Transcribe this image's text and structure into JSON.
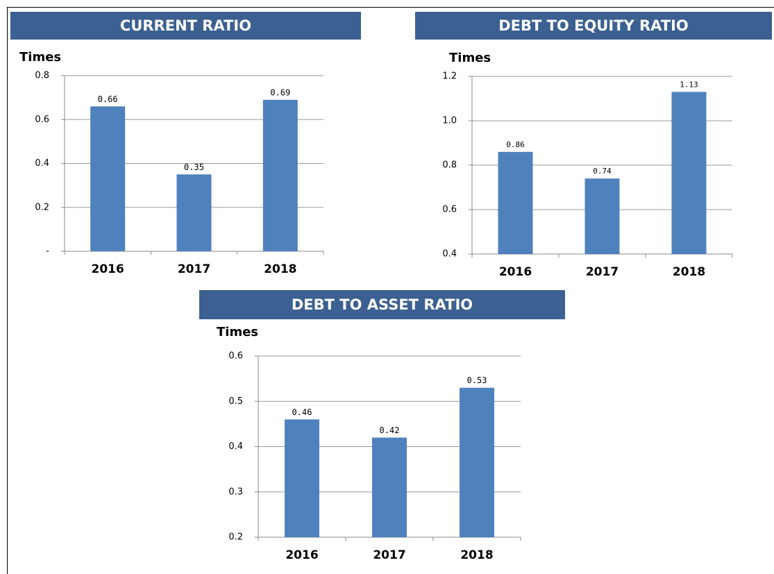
{
  "chart_data": [
    {
      "type": "bar",
      "title": "CURRENT RATIO",
      "y_label": "Times",
      "categories": [
        "2016",
        "2017",
        "2018"
      ],
      "values": [
        0.66,
        0.35,
        0.69
      ],
      "color": "#4f81bd",
      "ylim": [
        0,
        0.8
      ],
      "yticks": [
        {
          "value": 0,
          "label": "-"
        },
        0.2,
        0.4,
        0.6,
        0.8
      ],
      "grid": true
    },
    {
      "type": "bar",
      "title": "DEBT TO EQUITY RATIO",
      "y_label": "Times",
      "categories": [
        "2016",
        "2017",
        "2018"
      ],
      "values": [
        0.86,
        0.74,
        1.13
      ],
      "color": "#4f81bd",
      "ylim": [
        0.4,
        1.2
      ],
      "yticks": [
        0.4,
        0.6,
        0.8,
        {
          "value": 1.0,
          "label": "1.0"
        },
        1.2
      ],
      "grid": true
    },
    {
      "type": "bar",
      "title": "DEBT TO ASSET RATIO",
      "y_label": "Times",
      "categories": [
        "2016",
        "2017",
        "2018"
      ],
      "values": [
        0.46,
        0.42,
        0.53
      ],
      "color": "#4f81bd",
      "ylim": [
        0.2,
        0.6
      ],
      "yticks": [
        0.2,
        0.3,
        0.4,
        0.5,
        0.6
      ],
      "grid": true
    }
  ]
}
